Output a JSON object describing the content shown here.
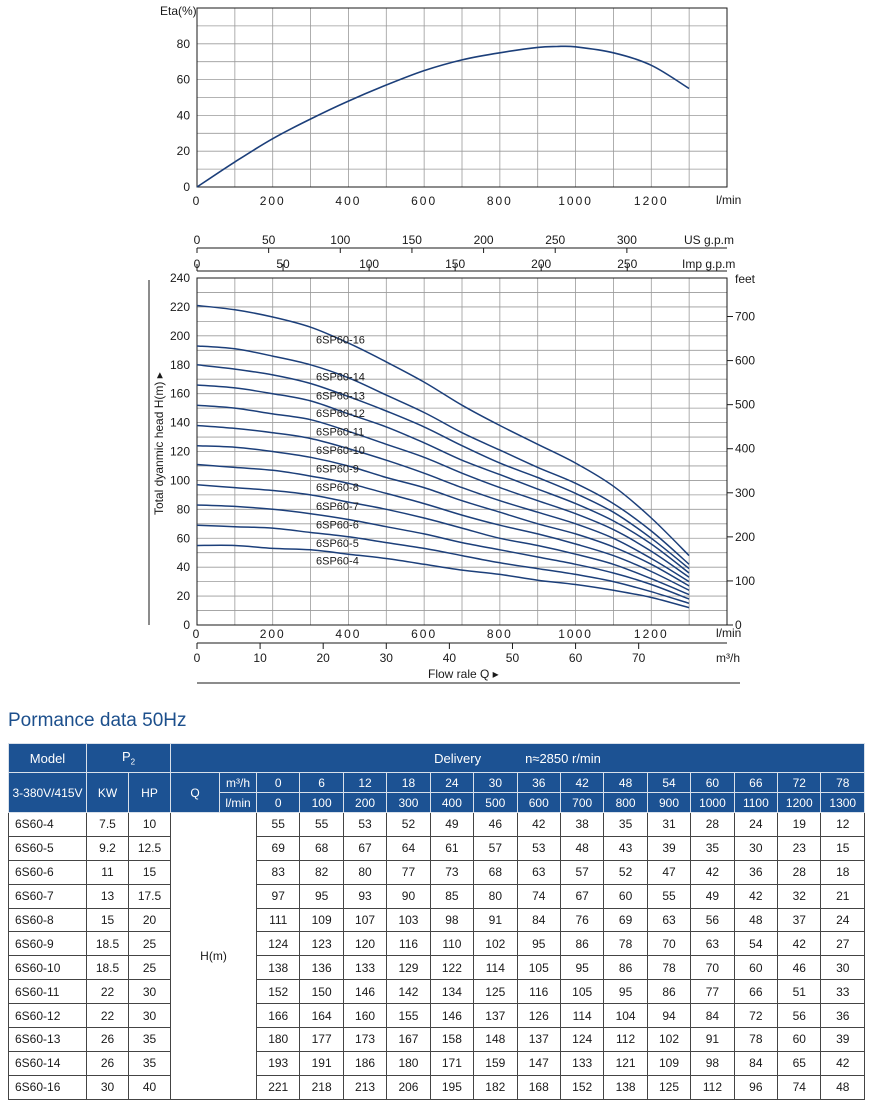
{
  "chart_data": [
    {
      "type": "line",
      "title": "",
      "ylabel": "Eta(%)",
      "xlabel": "l/min",
      "xlim": [
        0,
        1400
      ],
      "ylim": [
        0,
        100
      ],
      "x_ticks": [
        "0",
        "200",
        "400",
        "600",
        "800",
        "1000",
        "1200"
      ],
      "y_ticks": [
        "0",
        "20",
        "40",
        "60",
        "80"
      ],
      "grid": true,
      "series": [
        {
          "x": [
            0,
            100,
            200,
            300,
            400,
            500,
            600,
            700,
            800,
            900,
            950,
            1000,
            1100,
            1200,
            1300
          ],
          "y": [
            0,
            14,
            27,
            38,
            48,
            57,
            65,
            71,
            75,
            78,
            78.5,
            78.3,
            75,
            68,
            55
          ]
        }
      ]
    },
    {
      "type": "line",
      "title": "",
      "ylabel": "Total dyanmic head H(m) ▸",
      "ylabel_right": "feet",
      "xlabel": "Flow rale Q ▸",
      "xlim": [
        0,
        1400
      ],
      "ylim": [
        0,
        240
      ],
      "y_ticks": [
        "0",
        "20",
        "40",
        "60",
        "80",
        "100",
        "120",
        "140",
        "160",
        "180",
        "200",
        "220",
        "240"
      ],
      "y_ticks_right": [
        "0",
        "100",
        "200",
        "300",
        "400",
        "500",
        "600",
        "700"
      ],
      "axes": {
        "usgpm": {
          "label": "US g.p.m",
          "ticks": [
            "0",
            "50",
            "100",
            "150",
            "200",
            "250",
            "300"
          ]
        },
        "impgpm": {
          "label": "Imp g.p.m",
          "ticks": [
            "0",
            "50",
            "100",
            "150",
            "200",
            "250"
          ]
        },
        "lmin": {
          "label": "l/min",
          "ticks": [
            "0",
            "200",
            "400",
            "600",
            "800",
            "1000",
            "1200"
          ]
        },
        "m3h": {
          "label": "m³/h",
          "ticks": [
            "0",
            "10",
            "20",
            "30",
            "40",
            "50",
            "60",
            "70"
          ]
        }
      },
      "grid": true,
      "x": [
        0,
        100,
        200,
        300,
        400,
        500,
        600,
        700,
        800,
        900,
        1000,
        1100,
        1200,
        1300
      ],
      "series": [
        {
          "name": "6SP60-16",
          "values": [
            221,
            218,
            213,
            206,
            195,
            182,
            168,
            152,
            138,
            125,
            112,
            96,
            74,
            48
          ]
        },
        {
          "name": "6SP60-14",
          "values": [
            193,
            191,
            186,
            180,
            171,
            159,
            147,
            133,
            121,
            109,
            98,
            84,
            65,
            42
          ]
        },
        {
          "name": "6SP60-13",
          "values": [
            180,
            177,
            173,
            167,
            158,
            148,
            137,
            124,
            112,
            102,
            91,
            78,
            60,
            39
          ]
        },
        {
          "name": "6SP60-12",
          "values": [
            166,
            164,
            160,
            155,
            146,
            137,
            126,
            114,
            104,
            94,
            84,
            72,
            56,
            36
          ]
        },
        {
          "name": "6SP60-11",
          "values": [
            152,
            150,
            146,
            142,
            134,
            125,
            116,
            105,
            95,
            86,
            77,
            66,
            51,
            33
          ]
        },
        {
          "name": "6SP60-10",
          "values": [
            138,
            136,
            133,
            129,
            122,
            114,
            105,
            95,
            86,
            78,
            70,
            60,
            46,
            30
          ]
        },
        {
          "name": "6SP60-9",
          "values": [
            124,
            123,
            120,
            116,
            110,
            102,
            95,
            86,
            78,
            70,
            63,
            54,
            42,
            27
          ]
        },
        {
          "name": "6SP60-8",
          "values": [
            111,
            109,
            107,
            103,
            98,
            91,
            84,
            76,
            69,
            63,
            56,
            48,
            37,
            24
          ]
        },
        {
          "name": "6SP60-7",
          "values": [
            97,
            95,
            93,
            90,
            85,
            80,
            74,
            67,
            60,
            55,
            49,
            42,
            32,
            21
          ]
        },
        {
          "name": "6SP60-6",
          "values": [
            83,
            82,
            80,
            77,
            73,
            68,
            63,
            57,
            52,
            47,
            42,
            36,
            28,
            18
          ]
        },
        {
          "name": "6SP60-5",
          "values": [
            69,
            68,
            67,
            64,
            61,
            57,
            53,
            48,
            43,
            39,
            35,
            30,
            23,
            15
          ]
        },
        {
          "name": "6SP60-4",
          "values": [
            55,
            55,
            53,
            52,
            49,
            46,
            42,
            38,
            35,
            31,
            28,
            24,
            19,
            12
          ]
        }
      ]
    }
  ],
  "colors": {
    "curve": "#1c3f7a",
    "header_bg": "#1c5293",
    "title": "#1c4f8c"
  },
  "table": {
    "title": "Pormance data 50Hz",
    "model_header": "Model",
    "p2_header": "P",
    "p2_sub": "2",
    "delivery_label": "Delivery",
    "speed_label": "n≈2850 r/min",
    "voltage_header": "3-380V/415V",
    "kw_header": "KW",
    "hp_header": "HP",
    "q_header": "Q",
    "m3h_label": "m³/h",
    "lmin_label": "l/min",
    "h_label": "H(m)",
    "m3h_values": [
      "0",
      "6",
      "12",
      "18",
      "24",
      "30",
      "36",
      "42",
      "48",
      "54",
      "60",
      "66",
      "72",
      "78"
    ],
    "lmin_values": [
      "0",
      "100",
      "200",
      "300",
      "400",
      "500",
      "600",
      "700",
      "800",
      "900",
      "1000",
      "1100",
      "1200",
      "1300"
    ],
    "rows": [
      {
        "model": "6S60-4",
        "kw": "7.5",
        "hp": "10",
        "h": [
          "55",
          "55",
          "53",
          "52",
          "49",
          "46",
          "42",
          "38",
          "35",
          "31",
          "28",
          "24",
          "19",
          "12"
        ]
      },
      {
        "model": "6S60-5",
        "kw": "9.2",
        "hp": "12.5",
        "h": [
          "69",
          "68",
          "67",
          "64",
          "61",
          "57",
          "53",
          "48",
          "43",
          "39",
          "35",
          "30",
          "23",
          "15"
        ]
      },
      {
        "model": "6S60-6",
        "kw": "11",
        "hp": "15",
        "h": [
          "83",
          "82",
          "80",
          "77",
          "73",
          "68",
          "63",
          "57",
          "52",
          "47",
          "42",
          "36",
          "28",
          "18"
        ]
      },
      {
        "model": "6S60-7",
        "kw": "13",
        "hp": "17.5",
        "h": [
          "97",
          "95",
          "93",
          "90",
          "85",
          "80",
          "74",
          "67",
          "60",
          "55",
          "49",
          "42",
          "32",
          "21"
        ]
      },
      {
        "model": "6S60-8",
        "kw": "15",
        "hp": "20",
        "h": [
          "111",
          "109",
          "107",
          "103",
          "98",
          "91",
          "84",
          "76",
          "69",
          "63",
          "56",
          "48",
          "37",
          "24"
        ]
      },
      {
        "model": "6S60-9",
        "kw": "18.5",
        "hp": "25",
        "h": [
          "124",
          "123",
          "120",
          "116",
          "110",
          "102",
          "95",
          "86",
          "78",
          "70",
          "63",
          "54",
          "42",
          "27"
        ]
      },
      {
        "model": "6S60-10",
        "kw": "18.5",
        "hp": "25",
        "h": [
          "138",
          "136",
          "133",
          "129",
          "122",
          "114",
          "105",
          "95",
          "86",
          "78",
          "70",
          "60",
          "46",
          "30"
        ]
      },
      {
        "model": "6S60-11",
        "kw": "22",
        "hp": "30",
        "h": [
          "152",
          "150",
          "146",
          "142",
          "134",
          "125",
          "116",
          "105",
          "95",
          "86",
          "77",
          "66",
          "51",
          "33"
        ]
      },
      {
        "model": "6S60-12",
        "kw": "22",
        "hp": "30",
        "h": [
          "166",
          "164",
          "160",
          "155",
          "146",
          "137",
          "126",
          "114",
          "104",
          "94",
          "84",
          "72",
          "56",
          "36"
        ]
      },
      {
        "model": "6S60-13",
        "kw": "26",
        "hp": "35",
        "h": [
          "180",
          "177",
          "173",
          "167",
          "158",
          "148",
          "137",
          "124",
          "112",
          "102",
          "91",
          "78",
          "60",
          "39"
        ]
      },
      {
        "model": "6S60-14",
        "kw": "26",
        "hp": "35",
        "h": [
          "193",
          "191",
          "186",
          "180",
          "171",
          "159",
          "147",
          "133",
          "121",
          "109",
          "98",
          "84",
          "65",
          "42"
        ]
      },
      {
        "model": "6S60-16",
        "kw": "30",
        "hp": "40",
        "h": [
          "221",
          "218",
          "213",
          "206",
          "195",
          "182",
          "168",
          "152",
          "138",
          "125",
          "112",
          "96",
          "74",
          "48"
        ]
      }
    ]
  }
}
